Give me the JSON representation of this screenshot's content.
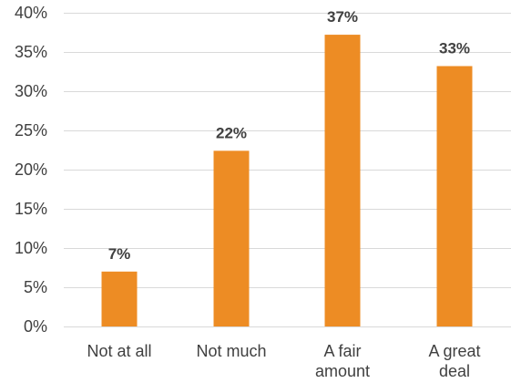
{
  "chart_data": {
    "type": "bar",
    "categories": [
      "Not at all",
      "Not much",
      "A fair amount",
      "A great deal"
    ],
    "category_lines": [
      [
        "Not at all"
      ],
      [
        "Not much"
      ],
      [
        "A fair",
        "amount"
      ],
      [
        "A great",
        "deal"
      ]
    ],
    "values": [
      7,
      22.4,
      37.2,
      33.2
    ],
    "data_labels": [
      "7%",
      "22%",
      "37%",
      "33%"
    ],
    "ylim": [
      0,
      40
    ],
    "y_ticks": [
      0,
      5,
      10,
      15,
      20,
      25,
      30,
      35,
      40
    ],
    "y_tick_labels": [
      "0%",
      "5%",
      "10%",
      "15%",
      "20%",
      "25%",
      "30%",
      "35%",
      "40%"
    ],
    "title": "",
    "xlabel": "",
    "ylabel": "",
    "grid": true,
    "legend": "none",
    "colors": {
      "bar": "#ED8C24",
      "grid": "#D9D9D9",
      "text": "#404040"
    }
  }
}
